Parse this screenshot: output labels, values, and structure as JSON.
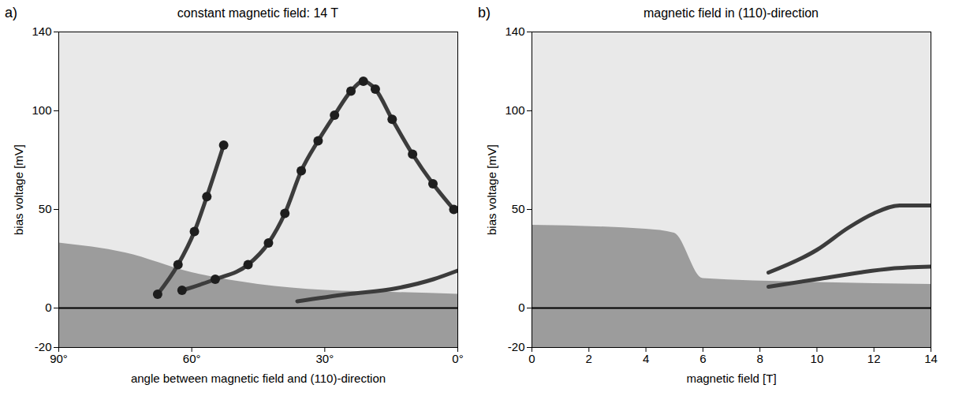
{
  "chart_data": [
    {
      "type": "line",
      "panel": "a)",
      "title": "constant magnetic field: 14 T",
      "x_label": "angle between magnetic field and (110)-direction",
      "y_label": "bias voltage [mV]",
      "xlim": [
        90,
        0
      ],
      "xticks": [
        {
          "value": 90,
          "label": "90°"
        },
        {
          "value": 60,
          "label": "60°"
        },
        {
          "value": 30,
          "label": "30°"
        },
        {
          "value": 0,
          "label": "0°"
        }
      ],
      "ylim": [
        -20,
        140
      ],
      "yticks": [
        -20,
        0,
        50,
        100,
        140
      ],
      "series": [
        {
          "type": "area",
          "color": "#9c9c9c",
          "x": [
            90,
            75,
            60,
            45,
            30,
            15,
            0
          ],
          "values": [
            33,
            28,
            18,
            12,
            9,
            8,
            7
          ]
        },
        {
          "type": "line",
          "color": "#000000",
          "x": [
            90,
            0
          ],
          "values": [
            0,
            0
          ]
        },
        {
          "type": "line",
          "color": "#3c3c3c",
          "marker": "circle",
          "x": [
            67.7,
            63.1,
            59.4,
            56.6,
            52.8
          ],
          "values": [
            7,
            22,
            38.8,
            56.5,
            82.6
          ]
        },
        {
          "type": "line",
          "color": "#3c3c3c",
          "marker": "circle",
          "x": [
            62.2,
            54.7,
            47.3,
            42.7,
            39,
            35.3,
            31.5,
            27.8,
            24.1,
            21.3,
            18.6,
            14.8,
            10.2,
            5.6,
            0.9
          ],
          "values": [
            9,
            14.6,
            22,
            33,
            48,
            69.6,
            84.8,
            97.8,
            110,
            115,
            111,
            95.7,
            78,
            63,
            50
          ]
        },
        {
          "type": "line",
          "color": "#3c3c3c",
          "x": [
            36.2,
            25,
            13.9,
            5.5,
            0
          ],
          "values": [
            3.4,
            7,
            10,
            14.6,
            19
          ]
        }
      ]
    },
    {
      "type": "line",
      "panel": "b)",
      "title": "magnetic field in (110)-direction",
      "x_label": "magnetic field [T]",
      "y_label": "bias voltage [mV]",
      "xlim": [
        0,
        14
      ],
      "xticks": [
        0,
        2,
        4,
        6,
        8,
        10,
        12,
        14
      ],
      "ylim": [
        -20,
        140
      ],
      "yticks": [
        -20,
        0,
        50,
        100,
        140
      ],
      "series": [
        {
          "type": "area",
          "color": "#9c9c9c",
          "x": [
            0,
            4,
            5,
            6,
            10,
            14
          ],
          "values": [
            42,
            40,
            38,
            15,
            13,
            12
          ]
        },
        {
          "type": "line",
          "color": "#000000",
          "x": [
            0,
            14
          ],
          "values": [
            0,
            0
          ]
        },
        {
          "type": "line",
          "color": "#3c3c3c",
          "x": [
            8.3,
            10,
            11.1,
            12,
            12.9,
            14
          ],
          "values": [
            18,
            29.5,
            40.7,
            48,
            52,
            52
          ]
        },
        {
          "type": "line",
          "color": "#3c3c3c",
          "x": [
            8.3,
            10,
            11.5,
            12.6,
            14
          ],
          "values": [
            10.8,
            14.6,
            18,
            20,
            21
          ]
        }
      ]
    }
  ]
}
